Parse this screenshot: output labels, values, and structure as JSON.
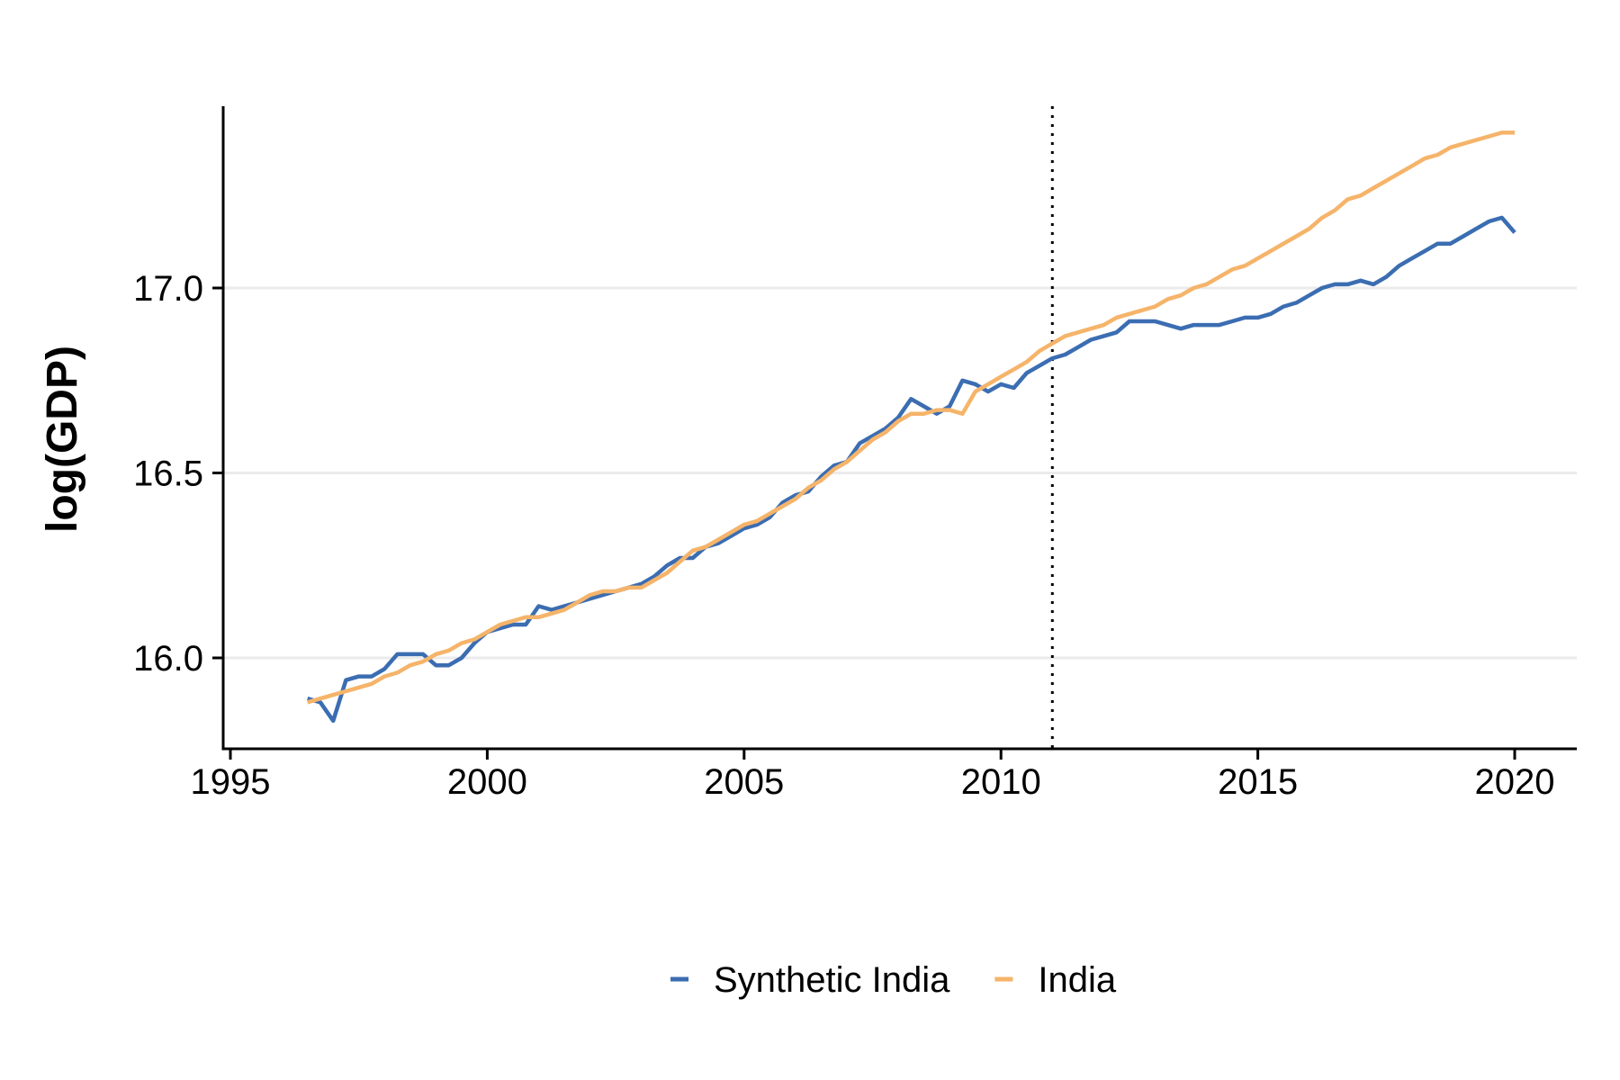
{
  "chart_data": {
    "type": "line",
    "title": "",
    "xlabel": "",
    "ylabel": "log(GDP)",
    "xlim": [
      1995,
      2021.2
    ],
    "ylim": [
      15.75,
      17.5
    ],
    "x_ticks": [
      {
        "value": 1995,
        "label": "1995"
      },
      {
        "value": 2000,
        "label": "2000"
      },
      {
        "value": 2005,
        "label": "2005"
      },
      {
        "value": 2010,
        "label": "2010"
      },
      {
        "value": 2015,
        "label": "2015"
      },
      {
        "value": 2020,
        "label": "2020"
      }
    ],
    "y_ticks": [
      {
        "value": 16.0,
        "label": "16.0"
      },
      {
        "value": 16.5,
        "label": "16.5"
      },
      {
        "value": 17.0,
        "label": "17.0"
      }
    ],
    "grid": "horizontal-major",
    "legend_position": "bottom",
    "annotations": [
      {
        "type": "vertical-dotted-line",
        "x": 2011.0
      }
    ],
    "colors": {
      "synthetic": "#3B6DB2",
      "india": "#F5B46A",
      "grid": "#EBEBEB",
      "axis": "#000000"
    },
    "series": [
      {
        "name": "Synthetic India",
        "color": "#3B6DB2",
        "points": [
          [
            1996.5,
            15.89
          ],
          [
            1996.75,
            15.88
          ],
          [
            1997.0,
            15.83
          ],
          [
            1997.25,
            15.94
          ],
          [
            1997.5,
            15.95
          ],
          [
            1997.75,
            15.95
          ],
          [
            1998.0,
            15.97
          ],
          [
            1998.25,
            16.01
          ],
          [
            1998.5,
            16.01
          ],
          [
            1998.75,
            16.01
          ],
          [
            1999.0,
            15.98
          ],
          [
            1999.25,
            15.98
          ],
          [
            1999.5,
            16.0
          ],
          [
            1999.75,
            16.04
          ],
          [
            2000.0,
            16.07
          ],
          [
            2000.25,
            16.08
          ],
          [
            2000.5,
            16.09
          ],
          [
            2000.75,
            16.09
          ],
          [
            2001.0,
            16.14
          ],
          [
            2001.25,
            16.13
          ],
          [
            2001.5,
            16.14
          ],
          [
            2001.75,
            16.15
          ],
          [
            2002.0,
            16.16
          ],
          [
            2002.25,
            16.17
          ],
          [
            2002.5,
            16.18
          ],
          [
            2002.75,
            16.19
          ],
          [
            2003.0,
            16.2
          ],
          [
            2003.25,
            16.22
          ],
          [
            2003.5,
            16.25
          ],
          [
            2003.75,
            16.27
          ],
          [
            2004.0,
            16.27
          ],
          [
            2004.25,
            16.3
          ],
          [
            2004.5,
            16.31
          ],
          [
            2004.75,
            16.33
          ],
          [
            2005.0,
            16.35
          ],
          [
            2005.25,
            16.36
          ],
          [
            2005.5,
            16.38
          ],
          [
            2005.75,
            16.42
          ],
          [
            2006.0,
            16.44
          ],
          [
            2006.25,
            16.45
          ],
          [
            2006.5,
            16.49
          ],
          [
            2006.75,
            16.52
          ],
          [
            2007.0,
            16.53
          ],
          [
            2007.25,
            16.58
          ],
          [
            2007.5,
            16.6
          ],
          [
            2007.75,
            16.62
          ],
          [
            2008.0,
            16.65
          ],
          [
            2008.25,
            16.7
          ],
          [
            2008.5,
            16.68
          ],
          [
            2008.75,
            16.66
          ],
          [
            2009.0,
            16.68
          ],
          [
            2009.25,
            16.75
          ],
          [
            2009.5,
            16.74
          ],
          [
            2009.75,
            16.72
          ],
          [
            2010.0,
            16.74
          ],
          [
            2010.25,
            16.73
          ],
          [
            2010.5,
            16.77
          ],
          [
            2010.75,
            16.79
          ],
          [
            2011.0,
            16.81
          ],
          [
            2011.25,
            16.82
          ],
          [
            2011.5,
            16.84
          ],
          [
            2011.75,
            16.86
          ],
          [
            2012.0,
            16.87
          ],
          [
            2012.25,
            16.88
          ],
          [
            2012.5,
            16.91
          ],
          [
            2012.75,
            16.91
          ],
          [
            2013.0,
            16.91
          ],
          [
            2013.25,
            16.9
          ],
          [
            2013.5,
            16.89
          ],
          [
            2013.75,
            16.9
          ],
          [
            2014.0,
            16.9
          ],
          [
            2014.25,
            16.9
          ],
          [
            2014.5,
            16.91
          ],
          [
            2014.75,
            16.92
          ],
          [
            2015.0,
            16.92
          ],
          [
            2015.25,
            16.93
          ],
          [
            2015.5,
            16.95
          ],
          [
            2015.75,
            16.96
          ],
          [
            2016.0,
            16.98
          ],
          [
            2016.25,
            17.0
          ],
          [
            2016.5,
            17.01
          ],
          [
            2016.75,
            17.01
          ],
          [
            2017.0,
            17.02
          ],
          [
            2017.25,
            17.01
          ],
          [
            2017.5,
            17.03
          ],
          [
            2017.75,
            17.06
          ],
          [
            2018.0,
            17.08
          ],
          [
            2018.25,
            17.1
          ],
          [
            2018.5,
            17.12
          ],
          [
            2018.75,
            17.12
          ],
          [
            2019.0,
            17.14
          ],
          [
            2019.25,
            17.16
          ],
          [
            2019.5,
            17.18
          ],
          [
            2019.75,
            17.19
          ],
          [
            2020.0,
            17.15
          ]
        ]
      },
      {
        "name": "India",
        "color": "#F5B46A",
        "points": [
          [
            1996.5,
            15.88
          ],
          [
            1996.75,
            15.89
          ],
          [
            1997.0,
            15.9
          ],
          [
            1997.25,
            15.91
          ],
          [
            1997.5,
            15.92
          ],
          [
            1997.75,
            15.93
          ],
          [
            1998.0,
            15.95
          ],
          [
            1998.25,
            15.96
          ],
          [
            1998.5,
            15.98
          ],
          [
            1998.75,
            15.99
          ],
          [
            1999.0,
            16.01
          ],
          [
            1999.25,
            16.02
          ],
          [
            1999.5,
            16.04
          ],
          [
            1999.75,
            16.05
          ],
          [
            2000.0,
            16.07
          ],
          [
            2000.25,
            16.09
          ],
          [
            2000.5,
            16.1
          ],
          [
            2000.75,
            16.11
          ],
          [
            2001.0,
            16.11
          ],
          [
            2001.25,
            16.12
          ],
          [
            2001.5,
            16.13
          ],
          [
            2001.75,
            16.15
          ],
          [
            2002.0,
            16.17
          ],
          [
            2002.25,
            16.18
          ],
          [
            2002.5,
            16.18
          ],
          [
            2002.75,
            16.19
          ],
          [
            2003.0,
            16.19
          ],
          [
            2003.25,
            16.21
          ],
          [
            2003.5,
            16.23
          ],
          [
            2003.75,
            16.26
          ],
          [
            2004.0,
            16.29
          ],
          [
            2004.25,
            16.3
          ],
          [
            2004.5,
            16.32
          ],
          [
            2004.75,
            16.34
          ],
          [
            2005.0,
            16.36
          ],
          [
            2005.25,
            16.37
          ],
          [
            2005.5,
            16.39
          ],
          [
            2005.75,
            16.41
          ],
          [
            2006.0,
            16.43
          ],
          [
            2006.25,
            16.46
          ],
          [
            2006.5,
            16.48
          ],
          [
            2006.75,
            16.51
          ],
          [
            2007.0,
            16.53
          ],
          [
            2007.25,
            16.56
          ],
          [
            2007.5,
            16.59
          ],
          [
            2007.75,
            16.61
          ],
          [
            2008.0,
            16.64
          ],
          [
            2008.25,
            16.66
          ],
          [
            2008.5,
            16.66
          ],
          [
            2008.75,
            16.67
          ],
          [
            2009.0,
            16.67
          ],
          [
            2009.25,
            16.66
          ],
          [
            2009.5,
            16.72
          ],
          [
            2009.75,
            16.74
          ],
          [
            2010.0,
            16.76
          ],
          [
            2010.25,
            16.78
          ],
          [
            2010.5,
            16.8
          ],
          [
            2010.75,
            16.83
          ],
          [
            2011.0,
            16.85
          ],
          [
            2011.25,
            16.87
          ],
          [
            2011.5,
            16.88
          ],
          [
            2011.75,
            16.89
          ],
          [
            2012.0,
            16.9
          ],
          [
            2012.25,
            16.92
          ],
          [
            2012.5,
            16.93
          ],
          [
            2012.75,
            16.94
          ],
          [
            2013.0,
            16.95
          ],
          [
            2013.25,
            16.97
          ],
          [
            2013.5,
            16.98
          ],
          [
            2013.75,
            17.0
          ],
          [
            2014.0,
            17.01
          ],
          [
            2014.25,
            17.03
          ],
          [
            2014.5,
            17.05
          ],
          [
            2014.75,
            17.06
          ],
          [
            2015.0,
            17.08
          ],
          [
            2015.25,
            17.1
          ],
          [
            2015.5,
            17.12
          ],
          [
            2015.75,
            17.14
          ],
          [
            2016.0,
            17.16
          ],
          [
            2016.25,
            17.19
          ],
          [
            2016.5,
            17.21
          ],
          [
            2016.75,
            17.24
          ],
          [
            2017.0,
            17.25
          ],
          [
            2017.25,
            17.27
          ],
          [
            2017.5,
            17.29
          ],
          [
            2017.75,
            17.31
          ],
          [
            2018.0,
            17.33
          ],
          [
            2018.25,
            17.35
          ],
          [
            2018.5,
            17.36
          ],
          [
            2018.75,
            17.38
          ],
          [
            2019.0,
            17.39
          ],
          [
            2019.25,
            17.4
          ],
          [
            2019.5,
            17.41
          ],
          [
            2019.75,
            17.42
          ],
          [
            2020.0,
            17.42
          ]
        ]
      }
    ]
  }
}
